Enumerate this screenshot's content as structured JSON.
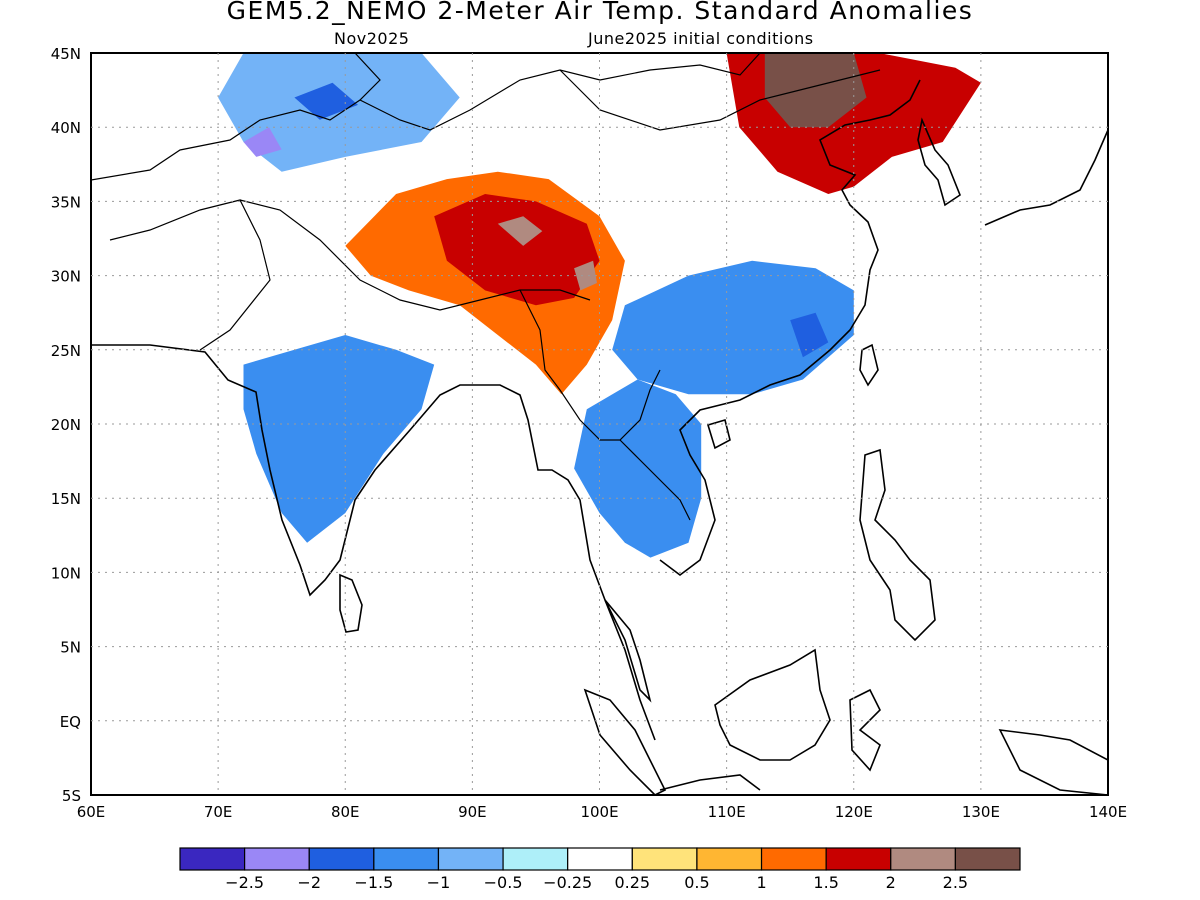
{
  "title": "GEM5.2_NEMO 2-Meter Air Temp. Standard Anomalies",
  "subtitle_left": "Nov2025",
  "subtitle_right": "June2025 initial conditions",
  "lon_ticks": [
    "60E",
    "70E",
    "80E",
    "90E",
    "100E",
    "110E",
    "120E",
    "130E",
    "140E"
  ],
  "lat_ticks": [
    "45N",
    "40N",
    "35N",
    "30N",
    "25N",
    "20N",
    "15N",
    "10N",
    "5N",
    "EQ",
    "5S"
  ],
  "extent": {
    "lon_min": 60,
    "lon_max": 140,
    "lat_min": -5,
    "lat_max": 45
  },
  "colorbar": {
    "labels": [
      "-2.5",
      "-2",
      "-1.5",
      "-1",
      "-0.5",
      "-0.25",
      "0.25",
      "0.5",
      "1",
      "1.5",
      "2",
      "2.5"
    ],
    "colors": [
      "#3a27c0",
      "#9a87f6",
      "#1f5fe0",
      "#3a8ef0",
      "#73b3f7",
      "#aeeff9",
      "#ffffff",
      "#ffe37a",
      "#ffb632",
      "#ff6a00",
      "#c80000",
      "#b08a80",
      "#785048"
    ]
  },
  "anomaly_regions": [
    {
      "name": "tibetan-plateau-warm",
      "color": "#ff6a00",
      "points": [
        [
          84,
          35.5
        ],
        [
          88,
          36.5
        ],
        [
          92,
          37
        ],
        [
          96,
          36.5
        ],
        [
          100,
          34
        ],
        [
          102,
          31
        ],
        [
          101,
          27
        ],
        [
          99,
          24
        ],
        [
          97,
          22
        ],
        [
          95,
          24
        ],
        [
          92,
          26
        ],
        [
          89,
          28
        ],
        [
          85,
          29
        ],
        [
          82,
          30
        ],
        [
          80,
          32
        ]
      ]
    },
    {
      "name": "tibetan-plateau-core",
      "color": "#c80000",
      "points": [
        [
          87,
          34
        ],
        [
          91,
          35.5
        ],
        [
          95,
          35
        ],
        [
          99,
          33.5
        ],
        [
          100,
          31
        ],
        [
          98,
          28.5
        ],
        [
          95,
          28
        ],
        [
          91,
          29
        ],
        [
          88,
          31
        ]
      ]
    },
    {
      "name": "tibet-peak-west",
      "color": "#b08a80",
      "points": [
        [
          92,
          33.5
        ],
        [
          94,
          34
        ],
        [
          95.5,
          33
        ],
        [
          94,
          32
        ]
      ]
    },
    {
      "name": "tibet-peak-east",
      "color": "#b08a80",
      "points": [
        [
          98,
          30.5
        ],
        [
          99.5,
          31
        ],
        [
          99.8,
          29.5
        ],
        [
          98.5,
          29
        ]
      ]
    },
    {
      "name": "northeast-china-warm",
      "color": "#c80000",
      "points": [
        [
          110,
          45
        ],
        [
          122,
          45
        ],
        [
          128,
          44
        ],
        [
          130,
          43
        ],
        [
          127,
          39
        ],
        [
          123,
          38
        ],
        [
          120,
          36
        ],
        [
          118,
          35.5
        ],
        [
          114,
          37
        ],
        [
          111,
          40
        ]
      ]
    },
    {
      "name": "northeast-china-peak",
      "color": "#785048",
      "points": [
        [
          113,
          45
        ],
        [
          120,
          45
        ],
        [
          121,
          42
        ],
        [
          118,
          40
        ],
        [
          115,
          40
        ],
        [
          113,
          42
        ]
      ]
    },
    {
      "name": "india-cool",
      "color": "#3a8ef0",
      "points": [
        [
          72,
          24
        ],
        [
          76,
          25
        ],
        [
          80,
          26
        ],
        [
          84,
          25
        ],
        [
          87,
          24
        ],
        [
          86,
          21
        ],
        [
          83,
          18
        ],
        [
          80,
          14
        ],
        [
          77,
          12
        ],
        [
          75,
          14
        ],
        [
          73,
          18
        ],
        [
          72,
          21
        ]
      ]
    },
    {
      "name": "indochina-cool",
      "color": "#3a8ef0",
      "points": [
        [
          99,
          21
        ],
        [
          103,
          23
        ],
        [
          106,
          22
        ],
        [
          108,
          20
        ],
        [
          108,
          15
        ],
        [
          107,
          12
        ],
        [
          104,
          11
        ],
        [
          102,
          12
        ],
        [
          100,
          14
        ],
        [
          98,
          17
        ]
      ]
    },
    {
      "name": "south-china-cool",
      "color": "#3a8ef0",
      "points": [
        [
          102,
          28
        ],
        [
          107,
          30
        ],
        [
          112,
          31
        ],
        [
          117,
          30.5
        ],
        [
          120,
          29
        ],
        [
          120,
          26
        ],
        [
          116,
          23
        ],
        [
          112,
          22
        ],
        [
          107,
          22
        ],
        [
          103,
          23
        ],
        [
          101,
          25
        ]
      ]
    },
    {
      "name": "south-china-core",
      "color": "#1f5fe0",
      "points": [
        [
          115,
          27
        ],
        [
          117,
          27.5
        ],
        [
          118,
          25.5
        ],
        [
          116,
          24.5
        ]
      ]
    },
    {
      "name": "central-asia-cool",
      "color": "#73b3f7",
      "points": [
        [
          72,
          45
        ],
        [
          86,
          45
        ],
        [
          89,
          42
        ],
        [
          86,
          39
        ],
        [
          80,
          38
        ],
        [
          75,
          37
        ],
        [
          72,
          39
        ],
        [
          70,
          42
        ]
      ]
    },
    {
      "name": "central-asia-core",
      "color": "#1f5fe0",
      "points": [
        [
          76,
          42
        ],
        [
          79,
          43
        ],
        [
          81,
          41.5
        ],
        [
          78,
          40.5
        ]
      ]
    },
    {
      "name": "central-asia-peak",
      "color": "#9a87f6",
      "points": [
        [
          72,
          39
        ],
        [
          74,
          40
        ],
        [
          75,
          38.5
        ],
        [
          73,
          38
        ]
      ]
    }
  ],
  "icons": [
    "country-border-lines",
    "coastline-lines"
  ]
}
